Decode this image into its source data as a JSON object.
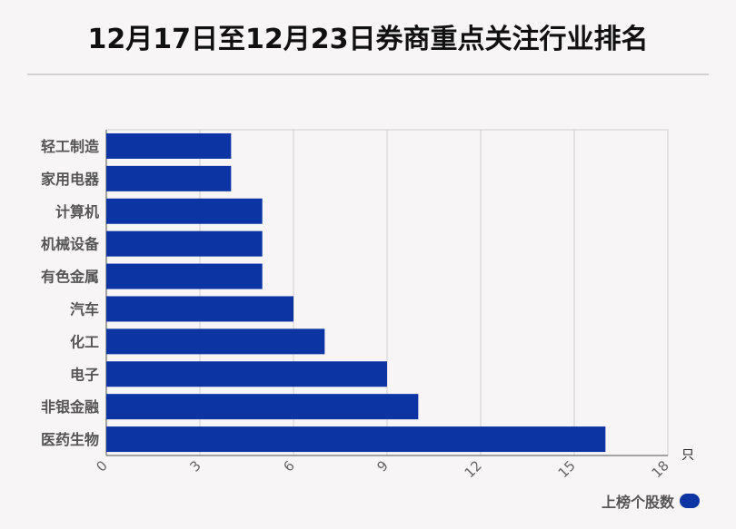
{
  "title": "12月17日至12月23日券商重点关注行业排名",
  "chart_data": {
    "type": "bar",
    "orientation": "horizontal",
    "title": "12月17日至12月23日券商重点关注行业排名",
    "categories": [
      "轻工制造",
      "家用电器",
      "计算机",
      "机械设备",
      "有色金属",
      "汽车",
      "化工",
      "电子",
      "非银金融",
      "医药生物"
    ],
    "series": [
      {
        "name": "上榜个股数",
        "values": [
          4,
          4,
          5,
          5,
          5,
          6,
          7,
          9,
          10,
          16
        ]
      }
    ],
    "xlabel": "只",
    "ylabel": "",
    "xlim": [
      0,
      18
    ],
    "xticks": [
      0,
      3,
      6,
      9,
      12,
      15,
      18
    ],
    "grid": true,
    "legend": "bottom-right"
  },
  "colors": {
    "bar": "#0c35a3",
    "grid": "#cfcfcf",
    "axis": "#888888",
    "tick_text": "#666666",
    "category_text": "#555555"
  },
  "legend": {
    "label": "上榜个股数"
  }
}
